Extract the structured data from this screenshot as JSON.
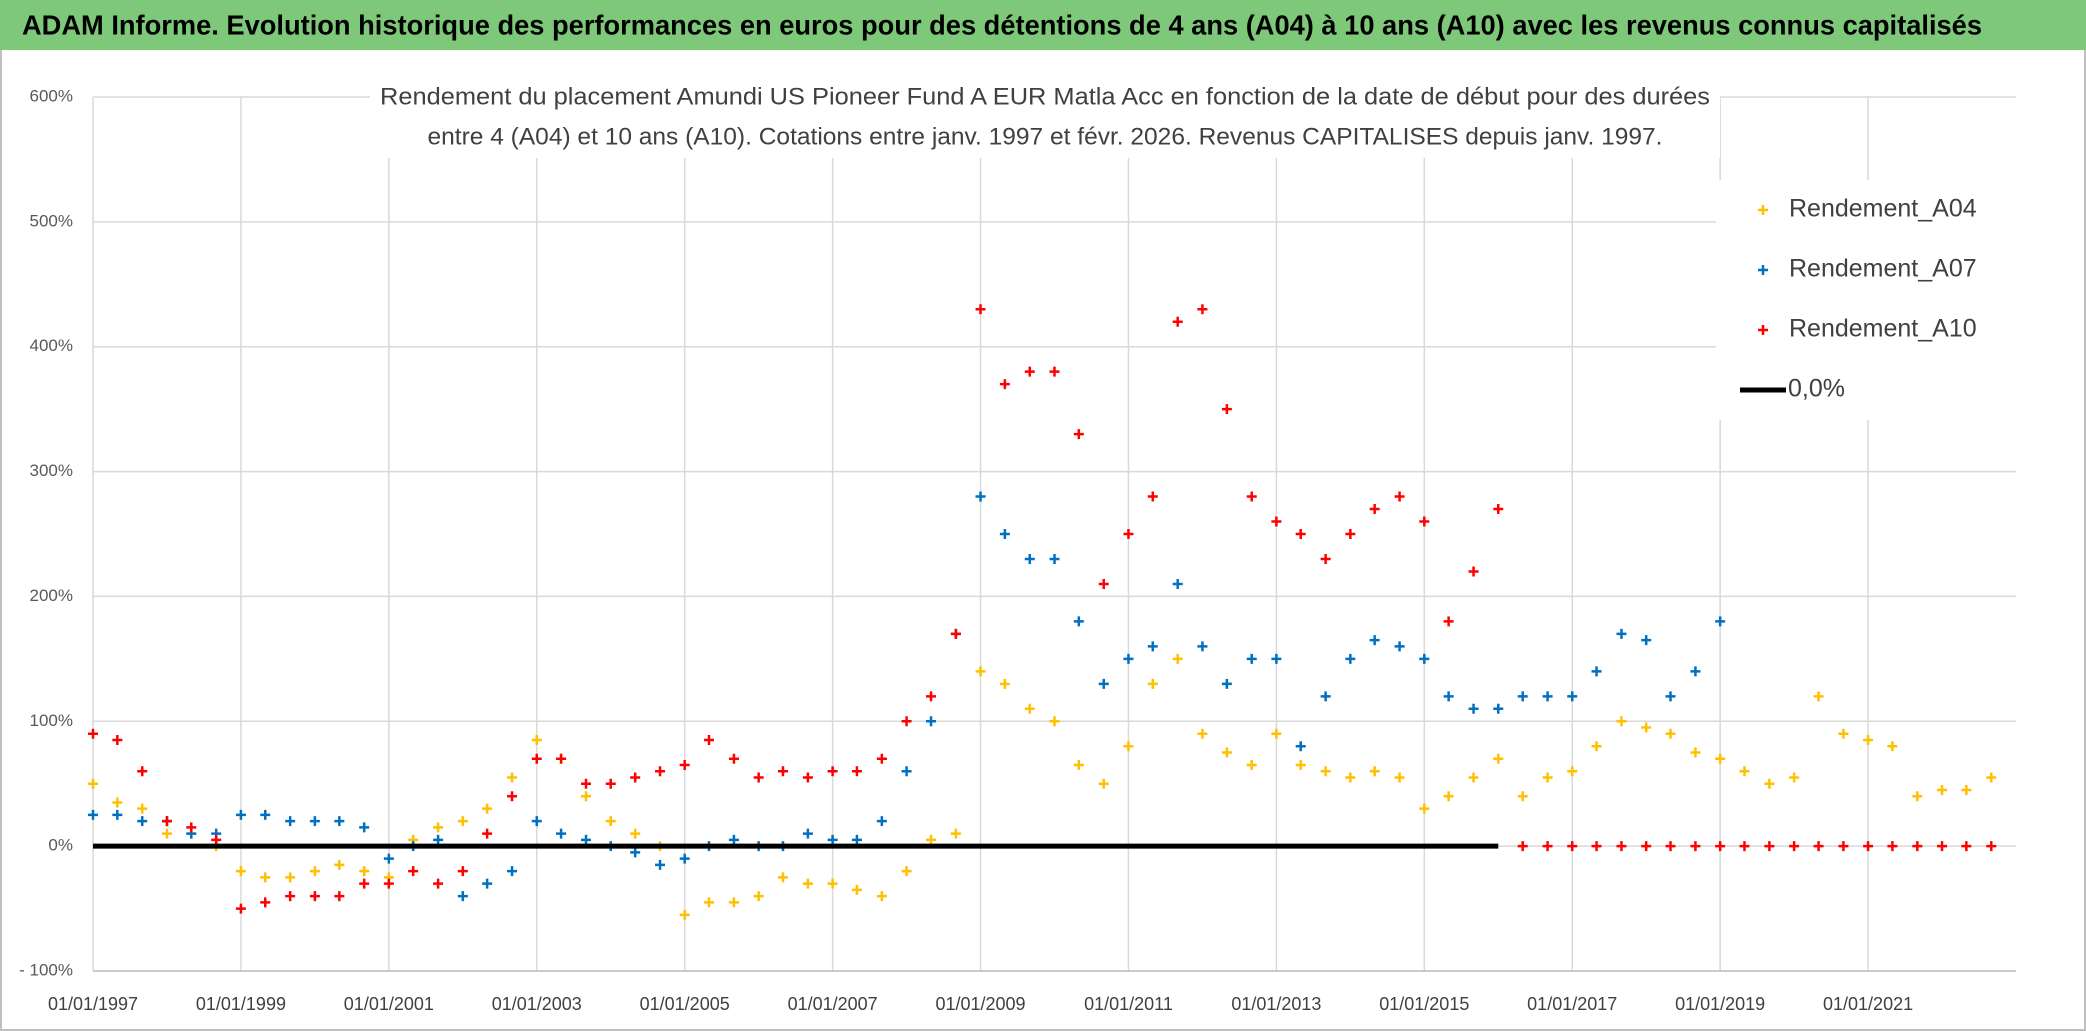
{
  "chart_data": {
    "type": "scatter",
    "title": "ADAM Informe. Evolution historique des performances en euros pour des détentions de 4 ans (A04) à 10 ans (A10) avec les revenus connus capitalisés",
    "subtitle": [
      "Rendement du placement Amundi US Pioneer Fund A EUR Matla Acc en fonction de la date de début pour des durées",
      "entre 4 (A04) et 10 ans (A10). Cotations entre janv. 1997 et févr. 2026. Revenus CAPITALISES depuis janv. 1997."
    ],
    "x": [
      "1997-01-01",
      "1997-05-01",
      "1997-09-01",
      "1998-01-01",
      "1998-05-01",
      "1998-09-01",
      "1999-01-01",
      "1999-05-01",
      "1999-09-01",
      "2000-01-01",
      "2000-05-01",
      "2000-09-01",
      "2001-01-01",
      "2001-05-01",
      "2001-09-01",
      "2002-01-01",
      "2002-05-01",
      "2002-09-01",
      "2003-01-01",
      "2003-05-01",
      "2003-09-01",
      "2004-01-01",
      "2004-05-01",
      "2004-09-01",
      "2005-01-01",
      "2005-05-01",
      "2005-09-01",
      "2006-01-01",
      "2006-05-01",
      "2006-09-01",
      "2007-01-01",
      "2007-05-01",
      "2007-09-01",
      "2008-01-01",
      "2008-05-01",
      "2008-09-01",
      "2009-01-01",
      "2009-05-01",
      "2009-09-01",
      "2010-01-01",
      "2010-05-01",
      "2010-09-01",
      "2011-01-01",
      "2011-05-01",
      "2011-09-01",
      "2012-01-01",
      "2012-05-01",
      "2012-09-01",
      "2013-01-01",
      "2013-05-01",
      "2013-09-01",
      "2014-01-01",
      "2014-05-01",
      "2014-09-01",
      "2015-01-01",
      "2015-05-01",
      "2015-09-01",
      "2016-01-01",
      "2016-05-01",
      "2016-09-01",
      "2017-01-01",
      "2017-05-01",
      "2017-09-01",
      "2018-01-01",
      "2018-05-01",
      "2018-09-01",
      "2019-01-01",
      "2019-05-01",
      "2019-09-01",
      "2020-01-01",
      "2020-05-01",
      "2020-09-01",
      "2021-01-01",
      "2021-05-01",
      "2021-09-01",
      "2022-01-01",
      "2022-05-01",
      "2022-09-01"
    ],
    "series": [
      {
        "name": "Rendement_A04",
        "color": "#ffc000",
        "values": [
          50,
          35,
          30,
          10,
          10,
          0,
          -20,
          -25,
          -25,
          -20,
          -15,
          -20,
          -25,
          5,
          15,
          20,
          30,
          55,
          85,
          70,
          40,
          20,
          10,
          0,
          -55,
          -45,
          -45,
          -40,
          -25,
          -30,
          -30,
          -35,
          -40,
          -20,
          5,
          10,
          140,
          130,
          110,
          100,
          65,
          50,
          80,
          130,
          150,
          90,
          75,
          65,
          90,
          65,
          60,
          55,
          60,
          55,
          30,
          40,
          55,
          70,
          40,
          55,
          60,
          80,
          100,
          95,
          90,
          75,
          70,
          60,
          50,
          55,
          120,
          90,
          85,
          80,
          40,
          45,
          45,
          55
        ]
      },
      {
        "name": "Rendement_A07",
        "color": "#0070c0",
        "values": [
          25,
          25,
          20,
          20,
          10,
          10,
          25,
          25,
          20,
          20,
          20,
          15,
          -10,
          0,
          5,
          -40,
          -30,
          -20,
          20,
          10,
          5,
          0,
          -5,
          -15,
          -10,
          0,
          5,
          0,
          0,
          10,
          5,
          5,
          20,
          60,
          100,
          170,
          280,
          250,
          230,
          230,
          180,
          130,
          150,
          160,
          210,
          160,
          130,
          150,
          150,
          80,
          120,
          150,
          165,
          160,
          150,
          120,
          110,
          110,
          120,
          120,
          120,
          140,
          170,
          165,
          120,
          140,
          180,
          null,
          null,
          null,
          null,
          null,
          null,
          null,
          null,
          null,
          null,
          null
        ]
      },
      {
        "name": "Rendement_A10",
        "color": "#ff0000",
        "values": [
          90,
          85,
          60,
          20,
          15,
          5,
          -50,
          -45,
          -40,
          -40,
          -40,
          -30,
          -30,
          -20,
          -30,
          -20,
          10,
          40,
          70,
          70,
          50,
          50,
          55,
          60,
          65,
          85,
          70,
          55,
          60,
          55,
          60,
          60,
          70,
          100,
          120,
          170,
          430,
          370,
          380,
          380,
          330,
          210,
          250,
          280,
          420,
          430,
          350,
          280,
          260,
          250,
          230,
          250,
          270,
          280,
          260,
          180,
          220,
          270,
          0,
          0,
          0,
          0,
          0,
          0,
          0,
          0,
          0,
          0,
          0,
          0,
          0,
          0,
          0,
          0,
          0,
          0,
          0,
          0
        ]
      },
      {
        "name": "0,0%",
        "color": "#000000",
        "style": "line",
        "values": [
          0,
          0,
          0,
          0,
          0,
          0,
          0,
          0,
          0,
          0,
          0,
          0,
          0,
          0,
          0,
          0,
          0,
          0,
          0,
          0,
          0,
          0,
          0,
          0,
          0,
          0,
          0,
          0,
          0,
          0,
          0,
          0,
          0,
          0,
          0,
          0,
          0,
          0,
          0,
          0,
          0,
          0,
          0,
          0,
          0,
          0,
          0,
          0,
          0,
          0,
          0,
          0,
          0,
          0,
          0,
          0,
          0,
          0,
          null,
          null,
          null,
          null,
          null,
          null,
          null,
          null,
          null,
          null,
          null,
          null,
          null,
          null,
          null,
          null,
          null,
          null,
          null,
          null
        ]
      }
    ],
    "xlim": [
      "1997-01-01",
      "2023-01-01"
    ],
    "xticks": [
      {
        "value": "1997-01-01",
        "label": "01/01/1997"
      },
      {
        "value": "1999-01-01",
        "label": "01/01/1999"
      },
      {
        "value": "2001-01-01",
        "label": "01/01/2001"
      },
      {
        "value": "2003-01-01",
        "label": "01/01/2003"
      },
      {
        "value": "2005-01-01",
        "label": "01/01/2005"
      },
      {
        "value": "2007-01-01",
        "label": "01/01/2007"
      },
      {
        "value": "2009-01-01",
        "label": "01/01/2009"
      },
      {
        "value": "2011-01-01",
        "label": "01/01/2011"
      },
      {
        "value": "2013-01-01",
        "label": "01/01/2013"
      },
      {
        "value": "2015-01-01",
        "label": "01/01/2015"
      },
      {
        "value": "2017-01-01",
        "label": "01/01/2017"
      },
      {
        "value": "2019-01-01",
        "label": "01/01/2019"
      },
      {
        "value": "2021-01-01",
        "label": "01/01/2021"
      }
    ],
    "ylim": [
      -100,
      600
    ],
    "yticks": [
      {
        "value": -100,
        "label": "- 100%"
      },
      {
        "value": 0,
        "label": "0%"
      },
      {
        "value": 100,
        "label": "100%"
      },
      {
        "value": 200,
        "label": "200%"
      },
      {
        "value": 300,
        "label": "300%"
      },
      {
        "value": 400,
        "label": "400%"
      },
      {
        "value": 500,
        "label": "500%"
      },
      {
        "value": 600,
        "label": "600%"
      }
    ],
    "grid": true,
    "legend": "top-right"
  }
}
